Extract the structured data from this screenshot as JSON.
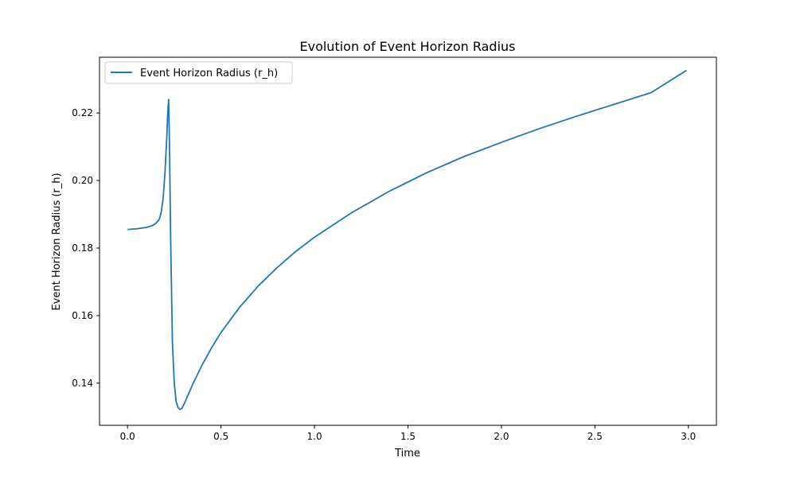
{
  "chart_data": {
    "type": "line",
    "title": "Evolution of Event Horizon Radius",
    "xlabel": "Time",
    "ylabel": "Event Horizon Radius (r_h)",
    "xlim": [
      -0.15,
      3.15
    ],
    "ylim": [
      0.1275,
      0.2365
    ],
    "xticks": [
      0.0,
      0.5,
      1.0,
      1.5,
      2.0,
      2.5,
      3.0
    ],
    "xtick_labels": [
      "0.0",
      "0.5",
      "1.0",
      "1.5",
      "2.0",
      "2.5",
      "3.0"
    ],
    "yticks": [
      0.14,
      0.16,
      0.18,
      0.2,
      0.22
    ],
    "ytick_labels": [
      "0.14",
      "0.16",
      "0.18",
      "0.20",
      "0.22"
    ],
    "grid": false,
    "legend": {
      "position": "top-left"
    },
    "series": [
      {
        "name": "Event Horizon Radius (r_h)",
        "color": "#1f77b4",
        "x": [
          0.0,
          0.05,
          0.1,
          0.13,
          0.15,
          0.17,
          0.18,
          0.19,
          0.2,
          0.21,
          0.215,
          0.22,
          0.225,
          0.23,
          0.24,
          0.25,
          0.26,
          0.27,
          0.28,
          0.29,
          0.3,
          0.32,
          0.35,
          0.4,
          0.45,
          0.5,
          0.6,
          0.7,
          0.8,
          0.9,
          1.0,
          1.2,
          1.4,
          1.6,
          1.8,
          2.0,
          2.2,
          2.4,
          2.6,
          2.8,
          2.99
        ],
        "y": [
          0.1855,
          0.1857,
          0.1861,
          0.1866,
          0.1872,
          0.1885,
          0.1905,
          0.1945,
          0.202,
          0.213,
          0.22,
          0.224,
          0.208,
          0.185,
          0.152,
          0.14,
          0.1345,
          0.1328,
          0.1322,
          0.1325,
          0.1335,
          0.136,
          0.1398,
          0.1455,
          0.1505,
          0.155,
          0.1625,
          0.1688,
          0.1742,
          0.179,
          0.1832,
          0.1905,
          0.1968,
          0.2023,
          0.2071,
          0.2113,
          0.2153,
          0.219,
          0.2225,
          0.226,
          0.2326
        ]
      }
    ]
  }
}
